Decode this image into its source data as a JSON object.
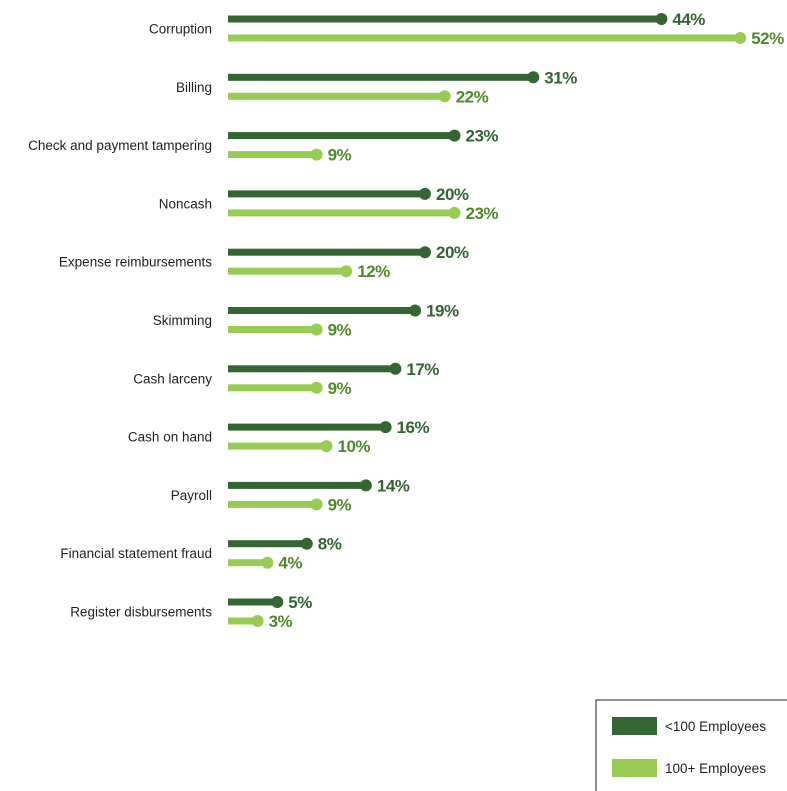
{
  "chart_data": {
    "type": "bar",
    "categories": [
      "Corruption",
      "Billing",
      "Check and payment tampering",
      "Noncash",
      "Expense reimbursements",
      "Skimming",
      "Cash larceny",
      "Cash on hand",
      "Payroll",
      "Financial statement fraud",
      "Register disbursements"
    ],
    "series": [
      {
        "name": "<100 Employees",
        "color": "#336633",
        "values": [
          44,
          31,
          23,
          20,
          20,
          19,
          17,
          16,
          14,
          8,
          5
        ],
        "labels": [
          "44%",
          "31%",
          "23%",
          "20%",
          "20%",
          "19%",
          "17%",
          "16%",
          "14%",
          "8%",
          "5%"
        ]
      },
      {
        "name": "100+ Employees",
        "color": "#99cc55",
        "values": [
          52,
          22,
          9,
          23,
          12,
          9,
          9,
          10,
          9,
          4,
          3
        ],
        "labels": [
          "52%",
          "22%",
          "9%",
          "23%",
          "12%",
          "9%",
          "9%",
          "10%",
          "9%",
          "4%",
          "3%"
        ]
      }
    ],
    "orientation": "horizontal",
    "style": "lollipop",
    "title": "",
    "xlabel": "",
    "ylabel": "",
    "xlim": [
      0,
      52
    ],
    "grid": false,
    "legend_position": "bottom-right"
  },
  "legend": {
    "items": [
      {
        "label": "<100 Employees",
        "color": "#336633"
      },
      {
        "label": "100+ Employees",
        "color": "#99cc55"
      }
    ]
  }
}
